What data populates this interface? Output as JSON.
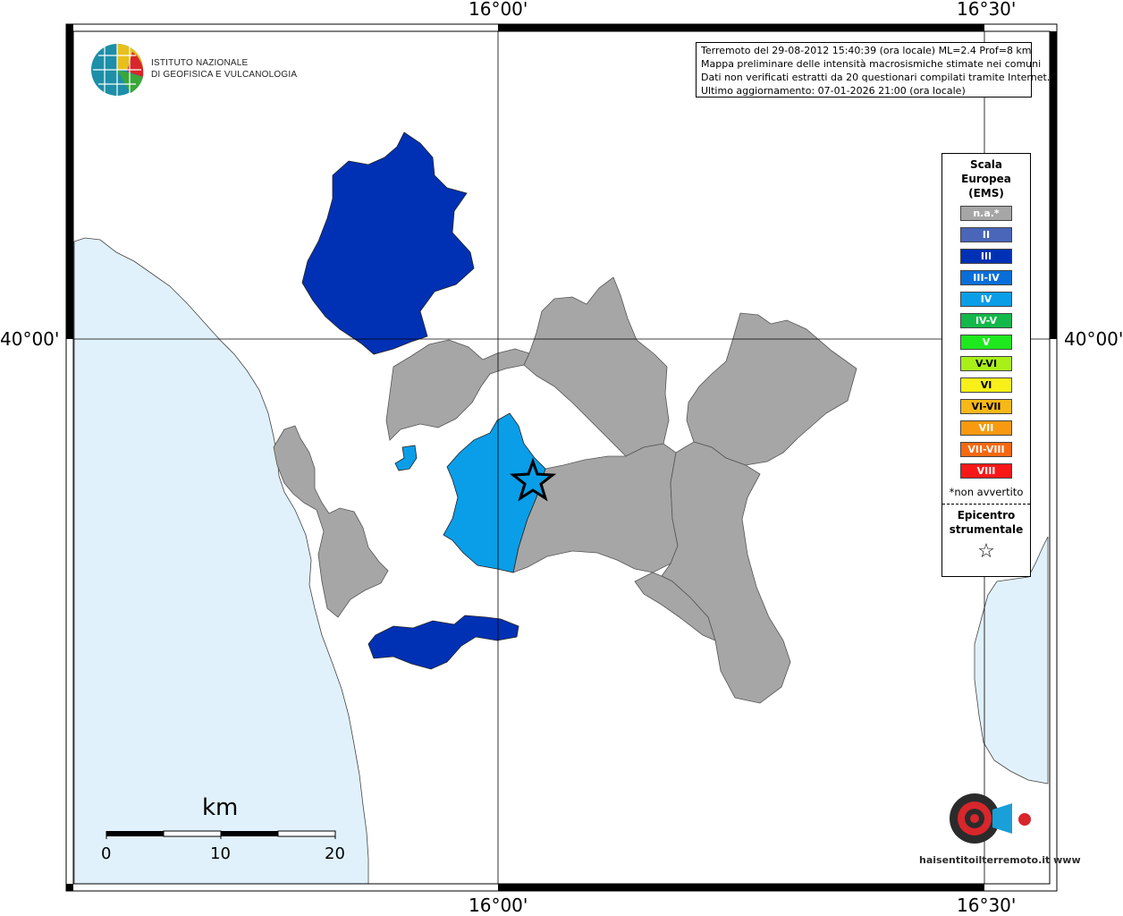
{
  "map": {
    "coordinates": {
      "top_left": "16°00'",
      "top_right": "16°30'",
      "bottom_left": "16°00'",
      "bottom_right": "16°30'",
      "left_lat": "40°00'",
      "right_lat": "40°00'"
    },
    "info": {
      "line1": "Terremoto del 29-08-2012 15:40:39 (ora locale) ML=2.4 Prof=8 km",
      "line2": "Mappa preliminare delle intensità macrosismiche stimate nei comuni",
      "line3": "Dati non verificati estratti da 20 questionari compilati tramite Internet.",
      "line4": "Ultimo aggiornamento: 07-01-2026 21:00 (ora locale)"
    },
    "legend": {
      "title_line1": "Scala",
      "title_line2": "Europea",
      "title_line3": "(EMS)",
      "items": [
        {
          "label": "n.a.*",
          "color": "#a6a6a6"
        },
        {
          "label": "II",
          "color": "#4a66b8"
        },
        {
          "label": "III",
          "color": "#0031b5"
        },
        {
          "label": "III-IV",
          "color": "#0a6ed8"
        },
        {
          "label": "IV",
          "color": "#0a9ee8"
        },
        {
          "label": "IV-V",
          "color": "#13b84a"
        },
        {
          "label": "V",
          "color": "#1ee81e"
        },
        {
          "label": "V-VI",
          "color": "#a8f018"
        },
        {
          "label": "VI",
          "color": "#f8f018"
        },
        {
          "label": "VI-VII",
          "color": "#f8b818"
        },
        {
          "label": "VII",
          "color": "#f89a10"
        },
        {
          "label": "VII-VIII",
          "color": "#f86810"
        },
        {
          "label": "VIII",
          "color": "#f81818"
        }
      ],
      "note": "*non avvertito",
      "epicenter_line1": "Epicentro",
      "epicenter_line2": "strumentale"
    },
    "scalebar": {
      "unit": "km",
      "ticks": [
        "0",
        "10",
        "20"
      ]
    },
    "logo": {
      "line1": "ISTITUTO NAZIONALE",
      "line2": "DI GEOFISICA E VULCANOLOGIA"
    },
    "footer_logo": "haisentitoilterremoto.it www"
  }
}
